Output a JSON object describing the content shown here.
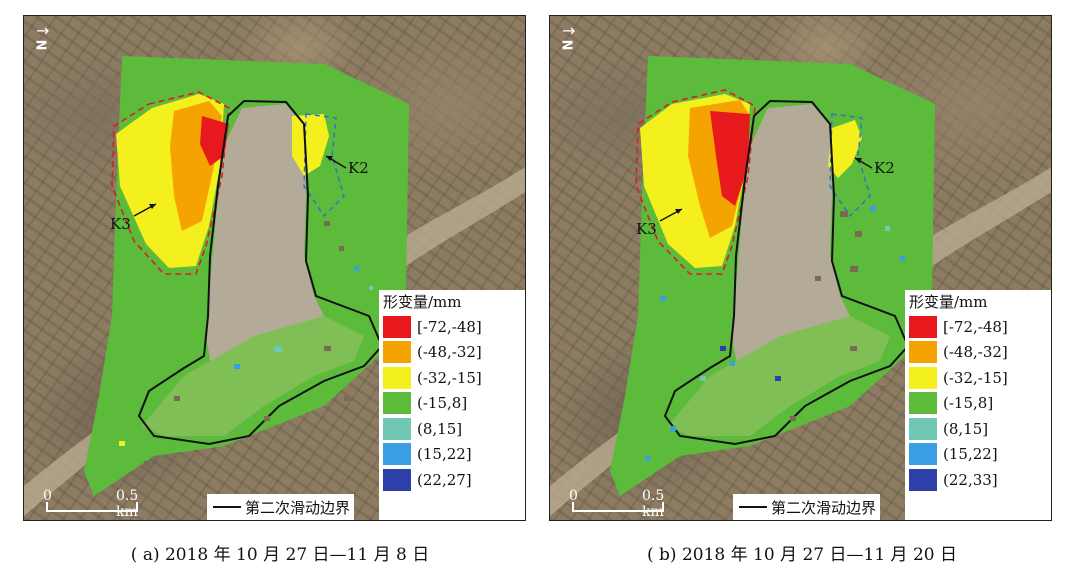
{
  "north_arrow": {
    "symbol": "→",
    "letter": "N"
  },
  "panels": [
    {
      "id": "a",
      "labels": {
        "k2": "K2",
        "k3": "K3"
      },
      "legend_title": "形变量/mm",
      "legend": [
        {
          "label": "[-72,-48]",
          "color": "#e8191c"
        },
        {
          "label": "(-48,-32]",
          "color": "#f5a300"
        },
        {
          "label": "(-32,-15]",
          "color": "#f4f01e"
        },
        {
          "label": "(-15,8]",
          "color": "#5dbb3c"
        },
        {
          "label": "(8,15]",
          "color": "#6fc7b4"
        },
        {
          "label": "(15,22]",
          "color": "#3a9ee4"
        },
        {
          "label": "(22,27]",
          "color": "#2f3fa8"
        }
      ],
      "scale": {
        "zero": "0",
        "distance": "0.5 km"
      },
      "boundary_label": "第二次滑动边界",
      "caption": "( a) 2018 年 10 月 27 日—11 月 8 日"
    },
    {
      "id": "b",
      "labels": {
        "k2": "K2",
        "k3": "K3"
      },
      "legend_title": "形变量/mm",
      "legend": [
        {
          "label": "[-72,-48]",
          "color": "#e8191c"
        },
        {
          "label": "(-48,-32]",
          "color": "#f5a300"
        },
        {
          "label": "(-32,-15]",
          "color": "#f4f01e"
        },
        {
          "label": "(-15,8]",
          "color": "#5dbb3c"
        },
        {
          "label": "(8,15]",
          "color": "#6fc7b4"
        },
        {
          "label": "(15,22]",
          "color": "#3a9ee4"
        },
        {
          "label": "(22,33]",
          "color": "#2f3fa8"
        }
      ],
      "scale": {
        "zero": "0",
        "distance": "0.5 km"
      },
      "boundary_label": "第二次滑动边界",
      "caption": "( b) 2018 年 10 月 27 日—11 月 20 日"
    }
  ]
}
